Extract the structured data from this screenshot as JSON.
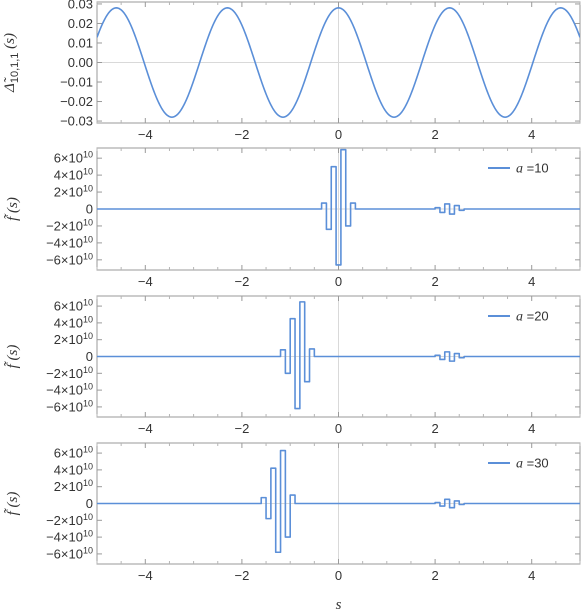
{
  "chart_data": [
    {
      "type": "line",
      "ylabel": "Δ̃10,1,1 (s)",
      "ylabel_main": "Δ̃",
      "ylabel_sub": "10,1,1",
      "ylabel_arg": "(s)",
      "xlim": [
        -5,
        5
      ],
      "ylim": [
        -0.031,
        0.031
      ],
      "xticks": [
        -4,
        -2,
        0,
        2,
        4
      ],
      "xtick_labels": [
        "−4",
        "−2",
        "0",
        "2",
        "4"
      ],
      "yticks": [
        -0.03,
        -0.02,
        -0.01,
        0.0,
        0.01,
        0.02,
        0.03
      ],
      "ytick_labels": [
        "−0.03",
        "−0.02",
        "−0.01",
        "0.00",
        "0.01",
        "0.02",
        "0.03"
      ],
      "series": [
        {
          "function": "sinusoid",
          "amplitude": 0.028,
          "period": 2.3,
          "peaks_at": [
            -4.6,
            -2.3,
            0.0,
            2.3,
            4.6
          ],
          "troughs_at": [
            -3.45,
            -1.15,
            1.15,
            3.45
          ],
          "color": "#5b8fd8"
        }
      ]
    },
    {
      "type": "line",
      "ylabel": "f̃ (s)",
      "ylabel_main": "f̃",
      "ylabel_arg": "(s)",
      "xlim": [
        -5,
        5
      ],
      "ylim": [
        -72000000000.0,
        72000000000.0
      ],
      "xticks": [
        -4,
        -2,
        0,
        2,
        4
      ],
      "xtick_labels": [
        "−4",
        "−2",
        "0",
        "2",
        "4"
      ],
      "yticks": [
        -60000000000.0,
        -40000000000.0,
        -20000000000.0,
        0,
        20000000000.0,
        40000000000.0,
        60000000000.0
      ],
      "ytick_mantissa": [
        "−6",
        "−4",
        "−2",
        "0",
        "2",
        "4",
        "6"
      ],
      "ytick_base": "×10",
      "ytick_exponent": "10",
      "legend": {
        "param": "a",
        "value": "=10"
      },
      "legend_placement": "top-right",
      "series": [
        {
          "burst_center": 0.0,
          "bursts": [
            [
              -0.12,
              0.035
            ],
            [
              -0.06,
              -0.05
            ],
            [
              0.0,
              0.075
            ],
            [
              0.06,
              -0.065
            ],
            [
              0.12,
              0.045
            ]
          ],
          "step_x": [
            -0.45,
            -0.35,
            -0.25,
            -0.15,
            -0.05,
            0.05,
            0.15,
            0.25,
            0.35
          ],
          "step_y": [
            0,
            7000000000.0,
            -24000000000.0,
            50000000000.0,
            -66000000000.0,
            70000000000.0,
            -20000000000.0,
            7000000000.0,
            0
          ],
          "small_x": [
            2.0,
            2.1,
            2.2,
            2.3,
            2.4,
            2.5
          ],
          "small_y": [
            1500000000.0,
            -4000000000.0,
            6000000000.0,
            -6000000000.0,
            4000000000.0,
            -1500000000.0
          ],
          "color": "#5b8fd8"
        }
      ]
    },
    {
      "type": "line",
      "ylabel": "f̃ (s)",
      "ylabel_main": "f̃",
      "ylabel_arg": "(s)",
      "xlim": [
        -5,
        5
      ],
      "ylim": [
        -72000000000.0,
        72000000000.0
      ],
      "xticks": [
        -4,
        -2,
        0,
        2,
        4
      ],
      "xtick_labels": [
        "−4",
        "−2",
        "0",
        "2",
        "4"
      ],
      "yticks": [
        -60000000000.0,
        -40000000000.0,
        -20000000000.0,
        0,
        20000000000.0,
        40000000000.0,
        60000000000.0
      ],
      "ytick_mantissa": [
        "−6",
        "−4",
        "−2",
        "0",
        "2",
        "4",
        "6"
      ],
      "ytick_base": "×10",
      "ytick_exponent": "10",
      "legend": {
        "param": "a",
        "value": "=20"
      },
      "legend_placement": "top-right",
      "series": [
        {
          "step_x": [
            -1.3,
            -1.2,
            -1.1,
            -1.0,
            -0.9,
            -0.8,
            -0.7,
            -0.6,
            -0.5
          ],
          "step_y": [
            0,
            8000000000.0,
            -20000000000.0,
            45000000000.0,
            -62000000000.0,
            65000000000.0,
            -30000000000.0,
            9000000000.0,
            0
          ],
          "small_x": [
            2.0,
            2.1,
            2.2,
            2.3,
            2.4,
            2.5
          ],
          "small_y": [
            1500000000.0,
            -3500000000.0,
            5500000000.0,
            -5500000000.0,
            3500000000.0,
            -1500000000.0
          ],
          "color": "#5b8fd8"
        }
      ]
    },
    {
      "type": "line",
      "ylabel": "f̃ (s)",
      "ylabel_main": "f̃",
      "ylabel_arg": "(s)",
      "xlabel": "s",
      "xlim": [
        -5,
        5
      ],
      "ylim": [
        -72000000000.0,
        72000000000.0
      ],
      "xticks": [
        -4,
        -2,
        0,
        2,
        4
      ],
      "xtick_labels": [
        "−4",
        "−2",
        "0",
        "2",
        "4"
      ],
      "yticks": [
        -60000000000.0,
        -40000000000.0,
        -20000000000.0,
        0,
        20000000000.0,
        40000000000.0,
        60000000000.0
      ],
      "ytick_mantissa": [
        "−6",
        "−4",
        "−2",
        "0",
        "2",
        "4",
        "6"
      ],
      "ytick_base": "×10",
      "ytick_exponent": "10",
      "legend": {
        "param": "a",
        "value": "=30"
      },
      "legend_placement": "top-right",
      "series": [
        {
          "step_x": [
            -1.7,
            -1.6,
            -1.5,
            -1.4,
            -1.3,
            -1.2,
            -1.1,
            -1.0,
            -0.9
          ],
          "step_y": [
            0,
            7000000000.0,
            -18000000000.0,
            42000000000.0,
            -58000000000.0,
            63000000000.0,
            -40000000000.0,
            10000000000.0,
            0
          ],
          "small_x": [
            2.0,
            2.1,
            2.2,
            2.3,
            2.4,
            2.5
          ],
          "small_y": [
            1200000000.0,
            -3000000000.0,
            5000000000.0,
            -5000000000.0,
            3000000000.0,
            -1200000000.0
          ],
          "color": "#5b8fd8"
        }
      ]
    }
  ]
}
